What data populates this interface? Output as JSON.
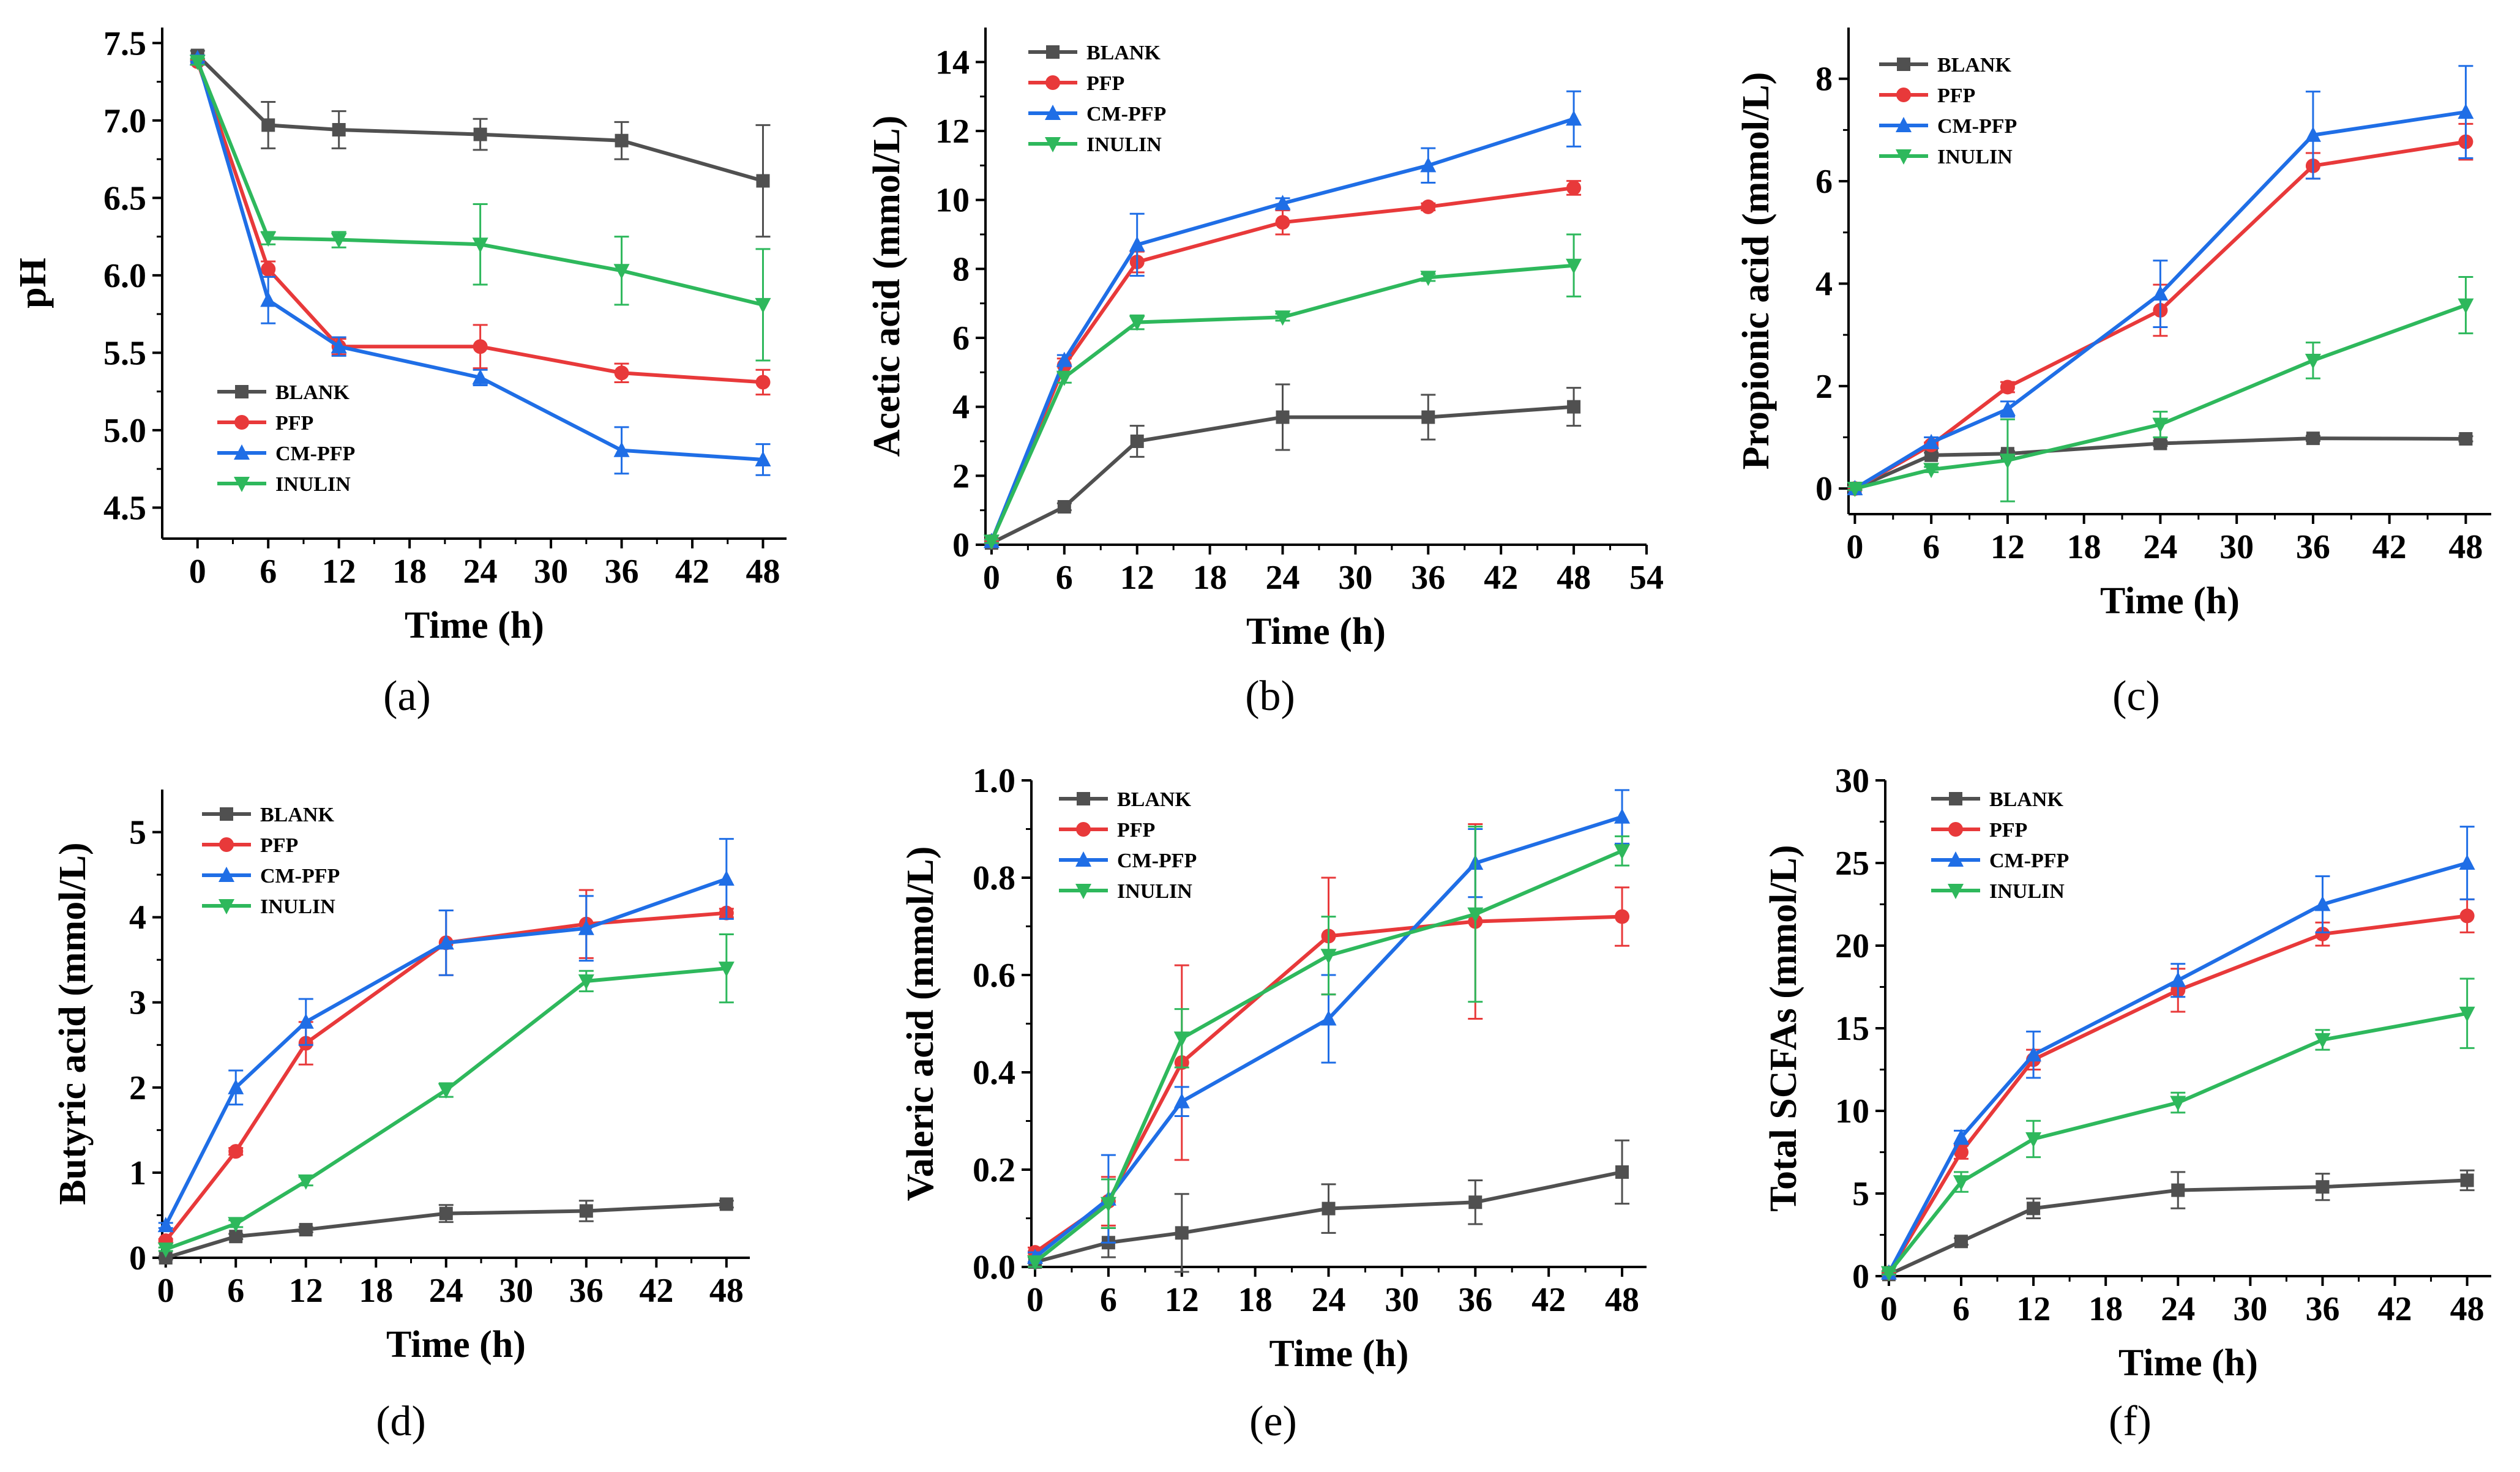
{
  "figure": {
    "colors": {
      "BLANK": "#505050",
      "PFP": "#e8393a",
      "CM-PFP": "#1f6ee6",
      "INULIN": "#2eb85c"
    },
    "legend_entries": [
      "BLANK",
      "PFP",
      "CM-PFP",
      "INULIN"
    ]
  },
  "chart_data": [
    {
      "id": "a",
      "type": "line",
      "caption": "(a)",
      "xlabel": "Time (h)",
      "ylabel": "pH",
      "xlim": [
        -3,
        50
      ],
      "ylim": [
        4.3,
        7.6
      ],
      "xticks": [
        0,
        6,
        12,
        18,
        24,
        30,
        36,
        42,
        48
      ],
      "yticks": [
        4.5,
        5.0,
        5.5,
        6.0,
        6.5,
        7.0,
        7.5
      ],
      "ytick_labels": [
        "4.5",
        "5.0",
        "5.5",
        "6.0",
        "6.5",
        "7.0",
        "7.5"
      ],
      "x": [
        0,
        6,
        12,
        24,
        36,
        48
      ],
      "series": [
        {
          "name": "BLANK",
          "values": [
            7.42,
            6.97,
            6.94,
            6.91,
            6.87,
            6.61
          ],
          "errors": [
            0.03,
            0.15,
            0.12,
            0.1,
            0.12,
            0.36
          ]
        },
        {
          "name": "PFP",
          "values": [
            7.38,
            6.04,
            5.54,
            5.54,
            5.37,
            5.31
          ],
          "errors": [
            0.02,
            0.05,
            0.05,
            0.14,
            0.06,
            0.08
          ]
        },
        {
          "name": "CM-PFP",
          "values": [
            7.4,
            5.84,
            5.54,
            5.34,
            4.87,
            4.81
          ],
          "errors": [
            0.02,
            0.15,
            0.06,
            0.05,
            0.15,
            0.1
          ]
        },
        {
          "name": "INULIN",
          "values": [
            7.38,
            6.24,
            6.23,
            6.2,
            6.03,
            5.81
          ],
          "errors": [
            0.02,
            0.04,
            0.05,
            0.26,
            0.22,
            0.36
          ]
        }
      ]
    },
    {
      "id": "b",
      "type": "line",
      "caption": "(b)",
      "xlabel": "Time (h)",
      "ylabel": "Acetic acid (mmol/L)",
      "xlim": [
        -0.5,
        54
      ],
      "ylim": [
        0,
        15
      ],
      "xticks": [
        0,
        6,
        12,
        18,
        24,
        30,
        36,
        42,
        48,
        54
      ],
      "yticks": [
        0,
        2,
        4,
        6,
        8,
        10,
        12,
        14
      ],
      "ytick_labels": [
        "0",
        "2",
        "4",
        "6",
        "8",
        "10",
        "12",
        "14"
      ],
      "x": [
        0,
        6,
        12,
        24,
        36,
        48
      ],
      "series": [
        {
          "name": "BLANK",
          "values": [
            0.05,
            1.1,
            3.0,
            3.7,
            3.7,
            4.0
          ],
          "errors": [
            0.05,
            0.1,
            0.45,
            0.95,
            0.65,
            0.55
          ]
        },
        {
          "name": "PFP",
          "values": [
            0.1,
            5.2,
            8.2,
            9.35,
            9.8,
            10.35
          ],
          "errors": [
            0.05,
            0.2,
            0.3,
            0.35,
            0.1,
            0.2
          ]
        },
        {
          "name": "CM-PFP",
          "values": [
            0.1,
            5.35,
            8.7,
            9.9,
            11.0,
            12.35
          ],
          "errors": [
            0.05,
            0.15,
            0.9,
            0.15,
            0.5,
            0.8
          ]
        },
        {
          "name": "INULIN",
          "values": [
            0.1,
            4.85,
            6.45,
            6.6,
            7.75,
            8.1
          ],
          "errors": [
            0.05,
            0.15,
            0.2,
            0.1,
            0.1,
            0.9
          ]
        }
      ]
    },
    {
      "id": "c",
      "type": "line",
      "caption": "(c)",
      "xlabel": "Time (h)",
      "ylabel": "Propionic acid (mmol/L)",
      "xlim": [
        -0.5,
        50
      ],
      "ylim": [
        -0.5,
        9
      ],
      "xticks": [
        0,
        6,
        12,
        18,
        24,
        30,
        36,
        42,
        48
      ],
      "yticks": [
        0,
        2,
        4,
        6,
        8
      ],
      "ytick_labels": [
        "0",
        "2",
        "4",
        "6",
        "8"
      ],
      "x": [
        0,
        6,
        12,
        24,
        36,
        48
      ],
      "series": [
        {
          "name": "BLANK",
          "values": [
            0.0,
            0.65,
            0.68,
            0.88,
            0.98,
            0.97
          ],
          "errors": [
            0.03,
            0.05,
            0.05,
            0.05,
            0.05,
            0.05
          ]
        },
        {
          "name": "PFP",
          "values": [
            0.0,
            0.85,
            1.98,
            3.48,
            6.3,
            6.77
          ],
          "errors": [
            0.03,
            0.05,
            0.1,
            0.5,
            0.25,
            0.35
          ]
        },
        {
          "name": "CM-PFP",
          "values": [
            0.0,
            0.9,
            1.55,
            3.8,
            6.9,
            7.35
          ],
          "errors": [
            0.03,
            0.1,
            0.15,
            0.65,
            0.85,
            0.9
          ]
        },
        {
          "name": "INULIN",
          "values": [
            0.0,
            0.37,
            0.55,
            1.25,
            2.5,
            3.58
          ],
          "errors": [
            0.03,
            0.05,
            0.8,
            0.25,
            0.35,
            0.55
          ]
        }
      ]
    },
    {
      "id": "d",
      "type": "line",
      "caption": "(d)",
      "xlabel": "Time (h)",
      "ylabel": "Butyric acid  (mmol/L)",
      "xlim": [
        -0.3,
        50
      ],
      "ylim": [
        0,
        5.5
      ],
      "xticks": [
        0,
        6,
        12,
        18,
        24,
        30,
        36,
        42,
        48
      ],
      "yticks": [
        0,
        1,
        2,
        3,
        4,
        5
      ],
      "ytick_labels": [
        "0",
        "1",
        "2",
        "3",
        "4",
        "5"
      ],
      "x": [
        0,
        6,
        12,
        24,
        36,
        48
      ],
      "series": [
        {
          "name": "BLANK",
          "values": [
            0.0,
            0.25,
            0.33,
            0.52,
            0.55,
            0.63
          ],
          "errors": [
            0.02,
            0.03,
            0.03,
            0.1,
            0.12,
            0.04
          ]
        },
        {
          "name": "PFP",
          "values": [
            0.2,
            1.25,
            2.52,
            3.7,
            3.92,
            4.05
          ],
          "errors": [
            0.02,
            0.04,
            0.25,
            0.38,
            0.4,
            0.05
          ]
        },
        {
          "name": "CM-PFP",
          "values": [
            0.38,
            2.0,
            2.77,
            3.7,
            3.87,
            4.45
          ],
          "errors": [
            0.03,
            0.2,
            0.27,
            0.38,
            0.38,
            0.47
          ]
        },
        {
          "name": "INULIN",
          "values": [
            0.1,
            0.4,
            0.9,
            1.97,
            3.25,
            3.4
          ],
          "errors": [
            0.02,
            0.04,
            0.05,
            0.08,
            0.12,
            0.4
          ]
        }
      ]
    },
    {
      "id": "e",
      "type": "line",
      "caption": "(e)",
      "xlabel": "Time (h)",
      "ylabel": "Valeric acid (mmol/L)",
      "xlim": [
        -0.3,
        50
      ],
      "ylim": [
        0,
        1.0
      ],
      "xticks": [
        0,
        6,
        12,
        18,
        24,
        30,
        36,
        42,
        48
      ],
      "yticks": [
        0,
        0.2,
        0.4,
        0.6,
        0.8,
        1.0
      ],
      "ytick_labels": [
        "0.0",
        "0.2",
        "0.4",
        "0.6",
        "0.8",
        "1.0"
      ],
      "x": [
        0,
        6,
        12,
        24,
        36,
        48
      ],
      "series": [
        {
          "name": "BLANK",
          "values": [
            0.01,
            0.05,
            0.07,
            0.12,
            0.133,
            0.195
          ],
          "errors": [
            0.01,
            0.03,
            0.08,
            0.05,
            0.045,
            0.065
          ]
        },
        {
          "name": "PFP",
          "values": [
            0.03,
            0.135,
            0.42,
            0.68,
            0.71,
            0.72
          ],
          "errors": [
            0.01,
            0.05,
            0.2,
            0.12,
            0.2,
            0.06
          ]
        },
        {
          "name": "CM-PFP",
          "values": [
            0.02,
            0.14,
            0.34,
            0.51,
            0.83,
            0.925
          ],
          "errors": [
            0.01,
            0.09,
            0.03,
            0.09,
            0.07,
            0.055
          ]
        },
        {
          "name": "INULIN",
          "values": [
            0.01,
            0.13,
            0.47,
            0.64,
            0.725,
            0.855
          ],
          "errors": [
            0.01,
            0.05,
            0.06,
            0.08,
            0.18,
            0.03
          ]
        }
      ]
    },
    {
      "id": "f",
      "type": "line",
      "caption": "(f)",
      "xlabel": "Time (h)",
      "ylabel": "Total SCFAs (mmol/L)",
      "xlim": [
        -0.3,
        50
      ],
      "ylim": [
        0,
        30
      ],
      "xticks": [
        0,
        6,
        12,
        18,
        24,
        30,
        36,
        42,
        48
      ],
      "yticks": [
        0,
        5,
        10,
        15,
        20,
        25,
        30
      ],
      "ytick_labels": [
        "0",
        "5",
        "10",
        "15",
        "20",
        "25",
        "30"
      ],
      "x": [
        0,
        6,
        12,
        24,
        36,
        48
      ],
      "series": [
        {
          "name": "BLANK",
          "values": [
            0.1,
            2.1,
            4.1,
            5.2,
            5.4,
            5.8
          ],
          "errors": [
            0.1,
            0.2,
            0.6,
            1.1,
            0.8,
            0.6
          ]
        },
        {
          "name": "PFP",
          "values": [
            0.2,
            7.5,
            13.1,
            17.3,
            20.7,
            21.8
          ],
          "errors": [
            0.1,
            0.4,
            0.6,
            1.3,
            0.7,
            1.0
          ]
        },
        {
          "name": "CM-PFP",
          "values": [
            0.2,
            8.4,
            13.4,
            17.9,
            22.5,
            25.0
          ],
          "errors": [
            0.1,
            0.4,
            1.4,
            1.0,
            1.7,
            2.2
          ]
        },
        {
          "name": "INULIN",
          "values": [
            0.2,
            5.7,
            8.3,
            10.5,
            14.3,
            15.9
          ],
          "errors": [
            0.1,
            0.6,
            1.1,
            0.6,
            0.6,
            2.1
          ]
        }
      ]
    }
  ]
}
